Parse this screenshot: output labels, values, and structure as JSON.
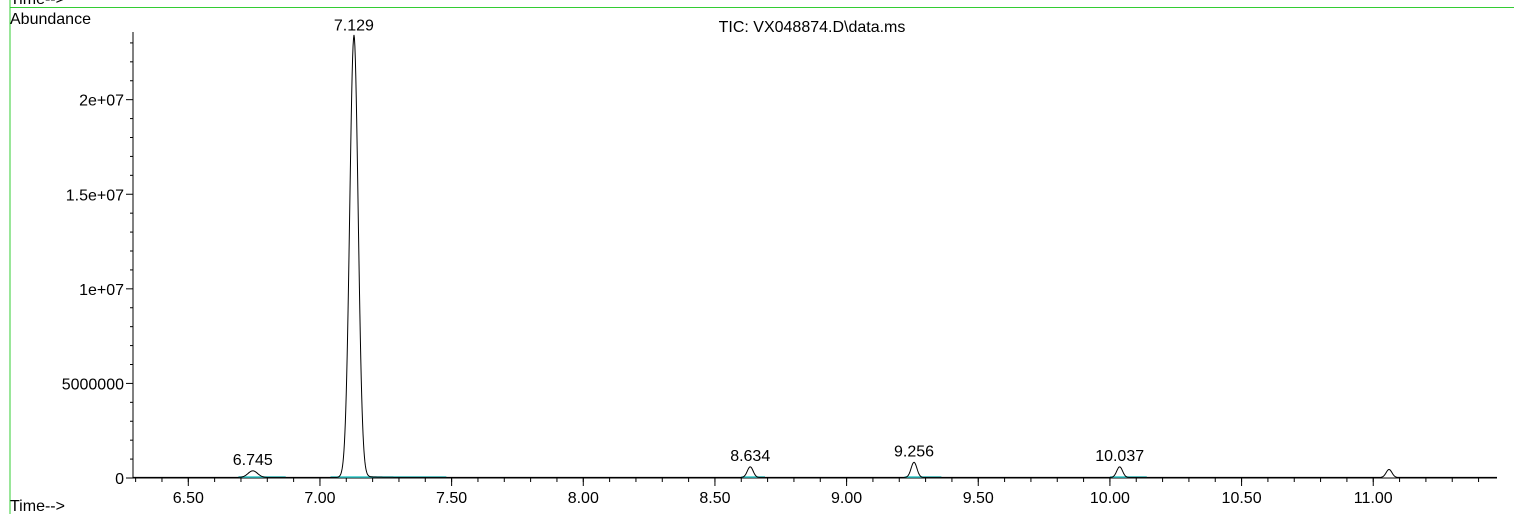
{
  "header": {
    "cut_off_label": "Time-->"
  },
  "chart_data": {
    "type": "line",
    "title": "TIC: VX048874.D\\data.ms",
    "xlabel": "Time-->",
    "ylabel": "Abundance",
    "xlim": [
      6.29,
      11.47
    ],
    "ylim": [
      0,
      24000000
    ],
    "x_ticks": [
      6.5,
      7.0,
      7.5,
      8.0,
      8.5,
      9.0,
      9.5,
      10.0,
      10.5,
      11.0
    ],
    "x_tick_labels": [
      "6.50",
      "7.00",
      "7.50",
      "8.00",
      "8.50",
      "9.00",
      "9.50",
      "10.00",
      "10.50",
      "11.00"
    ],
    "y_ticks": [
      0,
      5000000,
      10000000,
      15000000,
      20000000
    ],
    "y_tick_labels": [
      "0",
      "5000000",
      "1e+07",
      "1.5e+07",
      "2e+07"
    ],
    "grid": false,
    "peaks": [
      {
        "rt": 6.745,
        "label": "6.745",
        "height": 350000,
        "width": 0.018,
        "baseline": [
          6.69,
          6.87
        ]
      },
      {
        "rt": 7.129,
        "label": "7.129",
        "height": 23300000,
        "width": 0.016,
        "tail": 0.055,
        "baseline": [
          7.04,
          7.48
        ]
      },
      {
        "rt": 8.634,
        "label": "8.634",
        "height": 560000,
        "width": 0.011,
        "baseline": [
          8.6,
          8.69
        ]
      },
      {
        "rt": 9.256,
        "label": "9.256",
        "height": 800000,
        "width": 0.011,
        "baseline": [
          9.22,
          9.36
        ]
      },
      {
        "rt": 10.037,
        "label": "10.037",
        "height": 560000,
        "width": 0.011,
        "baseline": [
          10.0,
          10.14
        ]
      },
      {
        "rt": 11.06,
        "label": "",
        "height": 420000,
        "width": 0.011
      }
    ],
    "colors": {
      "frame": "#33cc33",
      "trace": "#000000",
      "baseline": "#33cccc",
      "axis": "#000000"
    }
  }
}
